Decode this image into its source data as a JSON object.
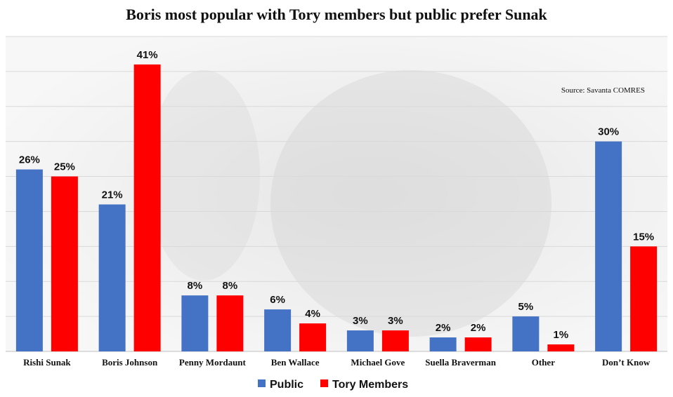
{
  "chart_data": {
    "type": "bar",
    "title": "Boris most popular with Tory members but public prefer Sunak",
    "source": "Source: Savanta COMRES",
    "categories": [
      "Rishi Sunak",
      "Boris Johnson",
      "Penny Mordaunt",
      "Ben Wallace",
      "Michael Gove",
      "Suella Braverman",
      "Other",
      "Don’t Know"
    ],
    "series": [
      {
        "name": "Public",
        "color": "#4472c4",
        "values": [
          26,
          21,
          8,
          6,
          3,
          2,
          5,
          30
        ],
        "labels": [
          "26%",
          "21%",
          "8%",
          "6%",
          "3%",
          "2%",
          "5%",
          "30%"
        ]
      },
      {
        "name": "Tory Members",
        "color": "#ff0000",
        "values": [
          25,
          41,
          8,
          4,
          3,
          2,
          1,
          15
        ],
        "labels": [
          "25%",
          "41%",
          "8%",
          "4%",
          "3%",
          "2%",
          "1%",
          "15%"
        ]
      }
    ],
    "ylim": [
      0,
      45
    ],
    "grid": true,
    "legend_position": "bottom-center",
    "xlabel": "",
    "ylabel": ""
  }
}
